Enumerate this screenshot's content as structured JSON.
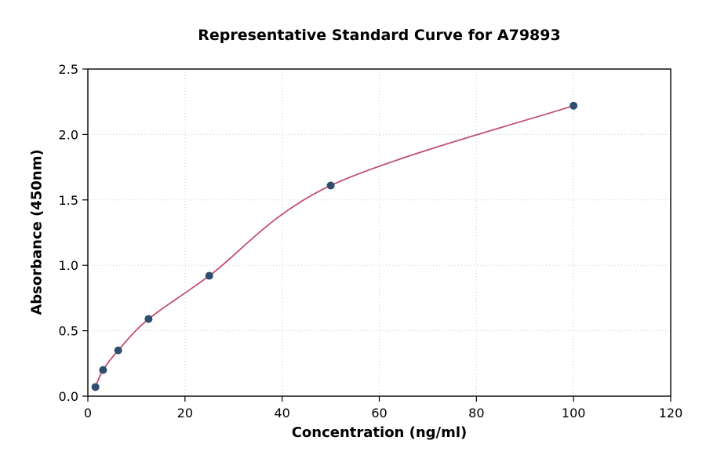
{
  "chart_data": {
    "type": "scatter",
    "title": "Representative Standard Curve for A79893",
    "xlabel": "Concentration (ng/ml)",
    "ylabel": "Absorbance (450nm)",
    "xlim": [
      0,
      120
    ],
    "ylim": [
      0,
      2.5
    ],
    "xticks": [
      0,
      20,
      40,
      60,
      80,
      100,
      120
    ],
    "yticks": [
      0.0,
      0.5,
      1.0,
      1.5,
      2.0,
      2.5
    ],
    "grid": true,
    "legend": "none",
    "points": [
      {
        "x": 1.56,
        "y": 0.07
      },
      {
        "x": 3.13,
        "y": 0.2
      },
      {
        "x": 6.25,
        "y": 0.35
      },
      {
        "x": 12.5,
        "y": 0.59
      },
      {
        "x": 25,
        "y": 0.92
      },
      {
        "x": 50,
        "y": 1.61
      },
      {
        "x": 100,
        "y": 2.22
      }
    ],
    "point_color": "#2e4e6e",
    "curve_color": "#c0506e",
    "frame_color": "#000000",
    "grid_color": "#cccccc",
    "background": "#ffffff"
  }
}
